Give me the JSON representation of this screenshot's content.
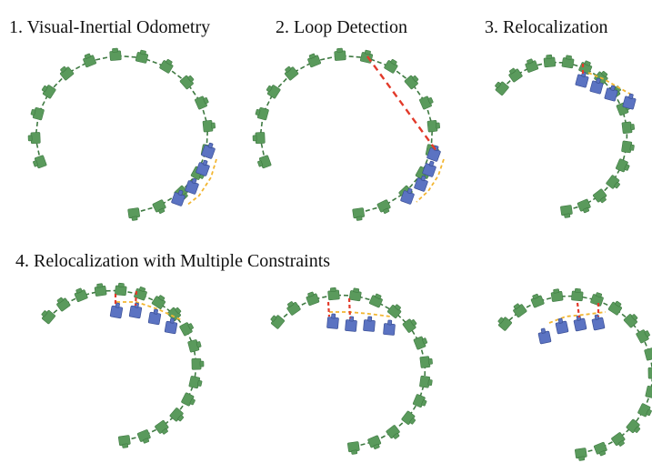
{
  "titles": {
    "vio": "1. Visual-Inertial Odometry",
    "loop": "2. Loop Detection",
    "reloc": "3. Relocalization",
    "multi": "4. Relocalization with Multiple Constraints"
  },
  "colors": {
    "keyframe": "#5a9a5c",
    "keyframe_stroke": "#3f7a42",
    "trajectory": "#3f7a42",
    "current_camera": "#5b73c2",
    "current_camera_stroke": "#3a4f95",
    "loop_link": "#e23a2a",
    "local_link": "#f2b632"
  }
}
